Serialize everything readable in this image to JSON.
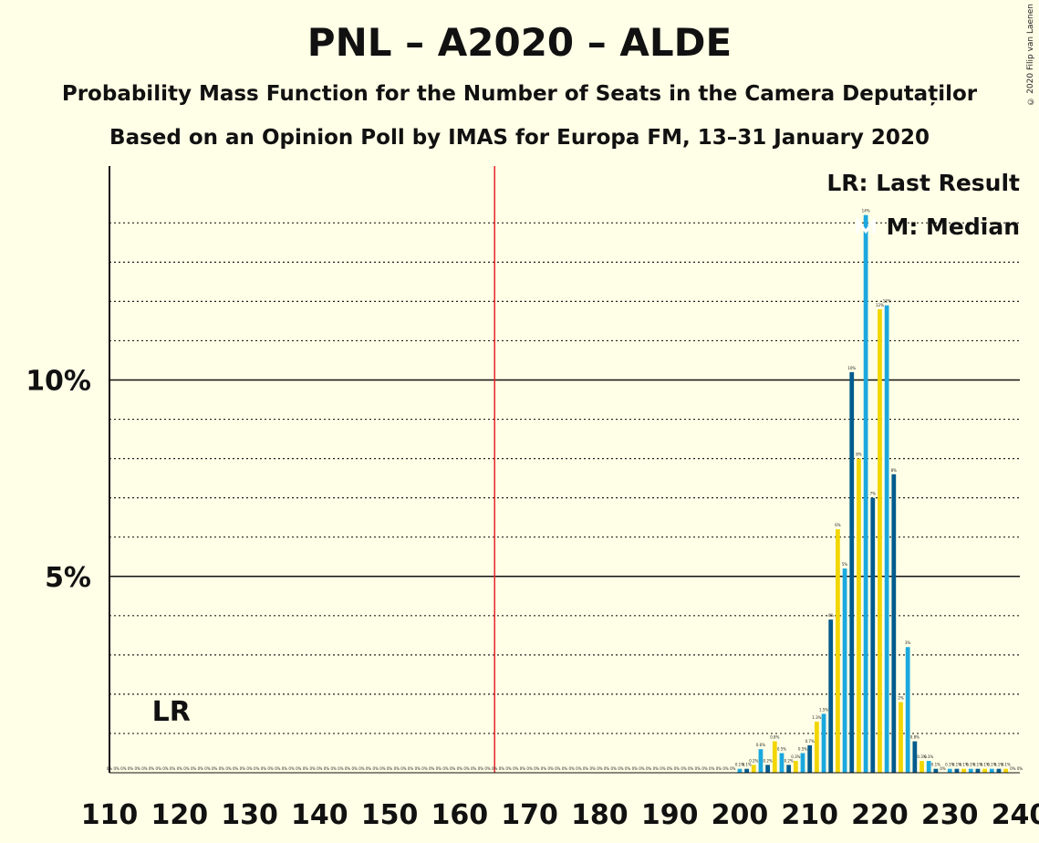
{
  "header": {
    "title": "PNL – A2020 – ALDE",
    "subtitle": "Probability Mass Function for the Number of Seats in the Camera Deputaților",
    "source": "Based on an Opinion Poll by IMAS for Europa FM, 13–31 January 2020",
    "copyright": "© 2020 Filip van Laenen"
  },
  "legend": {
    "lr": "LR: Last Result",
    "m": "M: Median"
  },
  "markers": {
    "lr_label": "LR",
    "median_label": "M",
    "last_result": 117,
    "median": 218,
    "majority": 165
  },
  "colors": {
    "blue": "#1BA8DF",
    "dark": "#005B8E",
    "yellow": "#F2D600",
    "majority_line": "#E8242A",
    "background": "#FFFEE6"
  },
  "chart_data": {
    "type": "bar",
    "x": [
      110,
      111,
      112,
      113,
      114,
      115,
      116,
      117,
      118,
      119,
      120,
      121,
      122,
      123,
      124,
      125,
      126,
      127,
      128,
      129,
      130,
      131,
      132,
      133,
      134,
      135,
      136,
      137,
      138,
      139,
      140,
      141,
      142,
      143,
      144,
      145,
      146,
      147,
      148,
      149,
      150,
      151,
      152,
      153,
      154,
      155,
      156,
      157,
      158,
      159,
      160,
      161,
      162,
      163,
      164,
      165,
      166,
      167,
      168,
      169,
      170,
      171,
      172,
      173,
      174,
      175,
      176,
      177,
      178,
      179,
      180,
      181,
      182,
      183,
      184,
      185,
      186,
      187,
      188,
      189,
      190,
      191,
      192,
      193,
      194,
      195,
      196,
      197,
      198,
      199,
      200,
      201,
      202,
      203,
      204,
      205,
      206,
      207,
      208,
      209,
      210,
      211,
      212,
      213,
      214,
      215,
      216,
      217,
      218,
      219,
      220,
      221,
      222,
      223,
      224,
      225,
      226,
      227,
      228,
      229,
      230,
      231,
      232,
      233,
      234,
      235,
      236,
      237,
      238,
      239,
      240
    ],
    "values": [
      0,
      0,
      0,
      0,
      0,
      0,
      0,
      0,
      0,
      0,
      0,
      0,
      0,
      0,
      0,
      0,
      0,
      0,
      0,
      0,
      0,
      0,
      0,
      0,
      0,
      0,
      0,
      0,
      0,
      0,
      0,
      0,
      0,
      0,
      0,
      0,
      0,
      0,
      0,
      0,
      0,
      0,
      0,
      0,
      0,
      0,
      0,
      0,
      0,
      0,
      0,
      0,
      0,
      0,
      0,
      0,
      0,
      0,
      0,
      0,
      0,
      0,
      0,
      0,
      0,
      0,
      0,
      0,
      0,
      0,
      0,
      0,
      0,
      0,
      0,
      0,
      0,
      0,
      0,
      0,
      0,
      0,
      0,
      0,
      0,
      0,
      0,
      0,
      0,
      0,
      0.1,
      0.1,
      0.2,
      0.6,
      0.2,
      0.8,
      0.5,
      0.2,
      0.3,
      0.5,
      0.7,
      1.3,
      1.5,
      3.9,
      6.2,
      5.2,
      10.2,
      8.0,
      14.2,
      7.0,
      11.8,
      11.9,
      7.6,
      1.8,
      3.2,
      0.8,
      0.3,
      0.3,
      0.1,
      0,
      0.1,
      0.1,
      0.1,
      0.1,
      0.1,
      0.1,
      0.1,
      0.1,
      0.1,
      0,
      0
    ],
    "labels": [
      "0%",
      "0%",
      "0%",
      "0%",
      "0%",
      "0%",
      "0%",
      "0%",
      "0%",
      "0%",
      "0%",
      "0%",
      "0%",
      "0%",
      "0%",
      "0%",
      "0%",
      "0%",
      "0%",
      "0%",
      "0%",
      "0%",
      "0%",
      "0%",
      "0%",
      "0%",
      "0%",
      "0%",
      "0%",
      "0%",
      "0%",
      "0%",
      "0%",
      "0%",
      "0%",
      "0%",
      "0%",
      "0%",
      "0%",
      "0%",
      "0%",
      "0%",
      "0%",
      "0%",
      "0%",
      "0%",
      "0%",
      "0%",
      "0%",
      "0%",
      "0%",
      "0%",
      "0%",
      "0%",
      "0%",
      "0%",
      "0%",
      "0%",
      "0%",
      "0%",
      "0%",
      "0%",
      "0%",
      "0%",
      "0%",
      "0%",
      "0%",
      "0%",
      "0%",
      "0%",
      "0%",
      "0%",
      "0%",
      "0%",
      "0%",
      "0%",
      "0%",
      "0%",
      "0%",
      "0%",
      "0%",
      "0%",
      "0%",
      "0%",
      "0%",
      "0%",
      "0%",
      "0%",
      "0%",
      "0%",
      "0.1%",
      "0.1%",
      "0.2%",
      "0.6%",
      "0.2%",
      "0.8%",
      "0.5%",
      "0.2%",
      "0.3%",
      "0.5%",
      "0.7%",
      "1.3%",
      "1.5%",
      "4%",
      "6%",
      "5%",
      "10%",
      "8%",
      "14%",
      "7%",
      "12%",
      "12%",
      "8%",
      "2%",
      "3%",
      "0.8%",
      "0.3%",
      "0.3%",
      "0.1%",
      "0%",
      "0.1%",
      "0.1%",
      "0.1%",
      "0.1%",
      "0.1%",
      "0.1%",
      "0.1%",
      "0.1%",
      "0.1%",
      "0%",
      "0%"
    ],
    "xlim": [
      110,
      240
    ],
    "ylim": [
      0,
      15.5
    ],
    "xticks": [
      "110",
      "120",
      "130",
      "140",
      "150",
      "160",
      "170",
      "180",
      "190",
      "200",
      "210",
      "220",
      "230",
      "240"
    ],
    "yticks": [
      {
        "v": 5,
        "label": "5%"
      },
      {
        "v": 10,
        "label": "10%"
      }
    ],
    "grid_dotted": [
      1,
      2,
      3,
      4,
      6,
      7,
      8,
      9,
      11,
      12,
      13,
      14
    ]
  }
}
